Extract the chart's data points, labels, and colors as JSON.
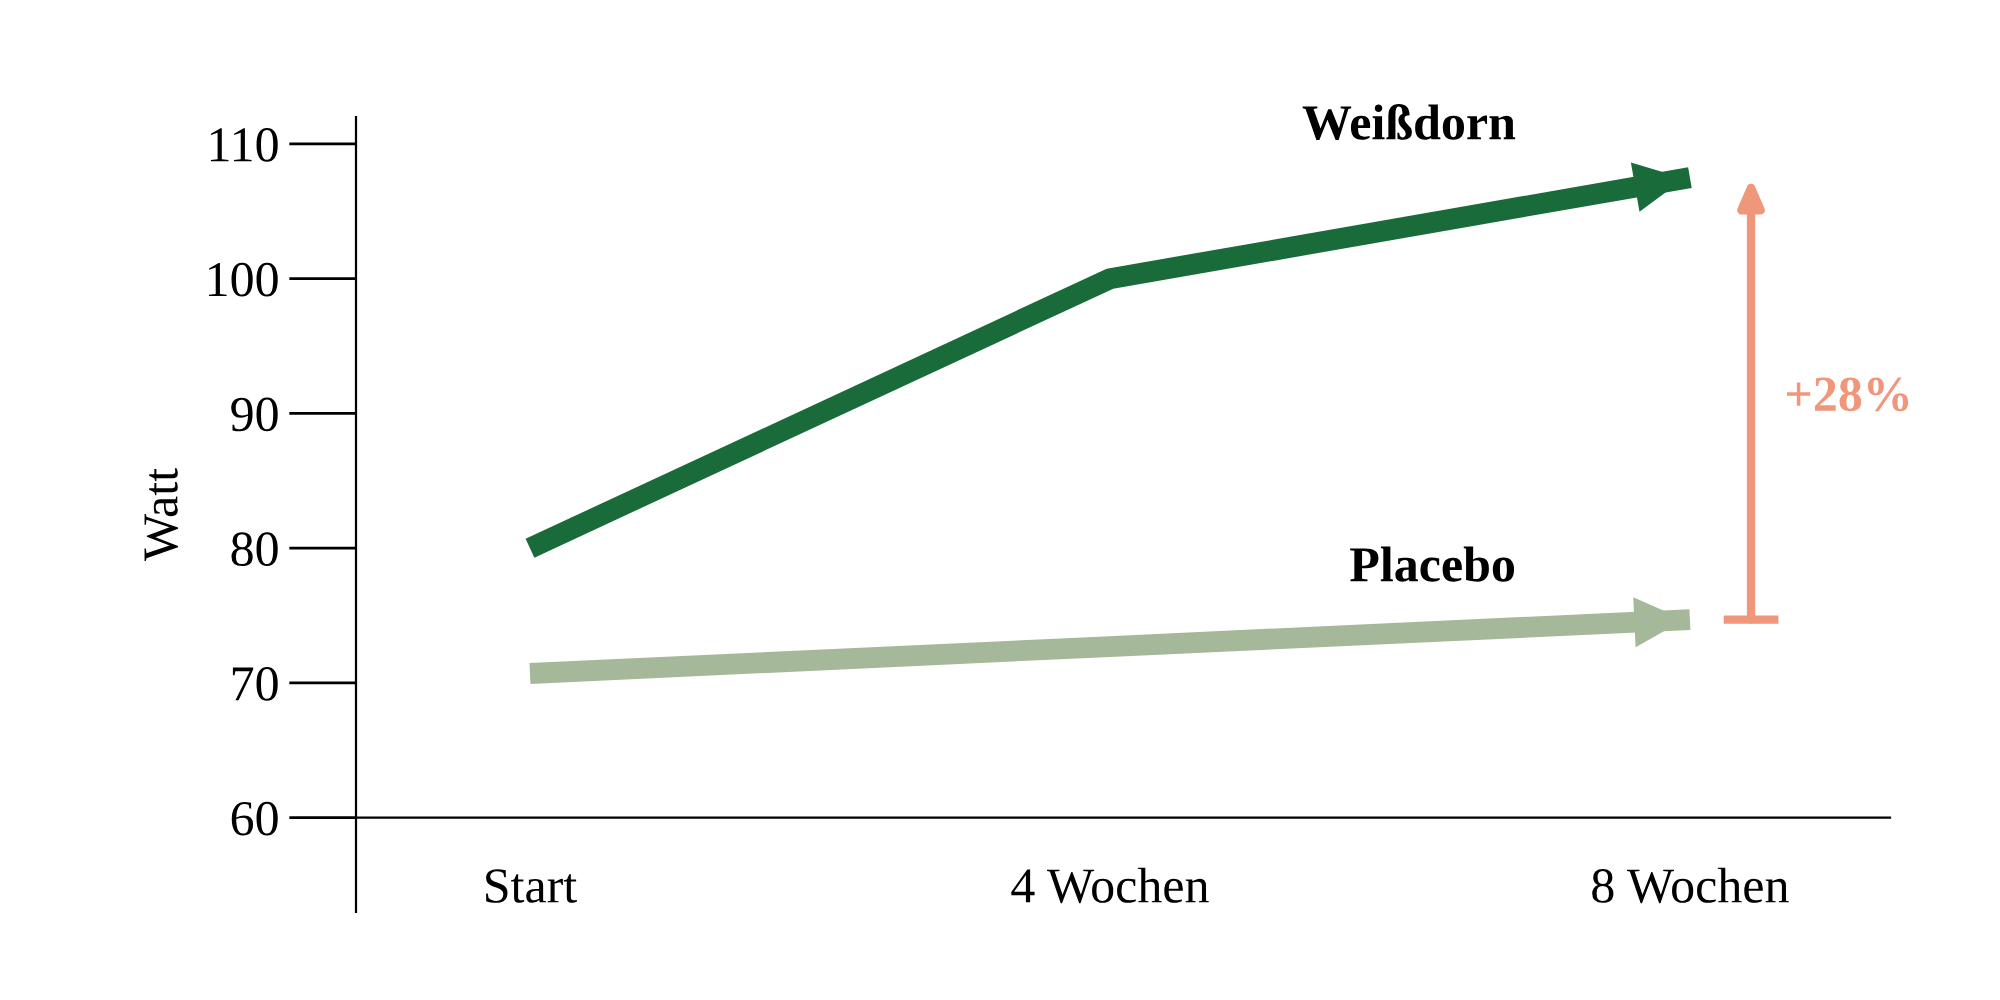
{
  "chart_data": {
    "type": "line",
    "ylabel": "Watt",
    "categories": [
      "Start",
      "4 Wochen",
      "8 Wochen"
    ],
    "series": [
      {
        "name": "Weißdorn",
        "color": "#1a6b3a",
        "values": [
          80,
          100,
          107.5
        ]
      },
      {
        "name": "Placebo",
        "color": "#a5b99a",
        "values": [
          70.7,
          72.7,
          74.7
        ]
      }
    ],
    "ylim": [
      53,
      112
    ],
    "yticks": [
      60,
      70,
      80,
      90,
      100,
      110
    ],
    "grid": false,
    "legend": false,
    "marker": "none",
    "line_style": "solid",
    "annotations": [
      "+28%"
    ]
  }
}
